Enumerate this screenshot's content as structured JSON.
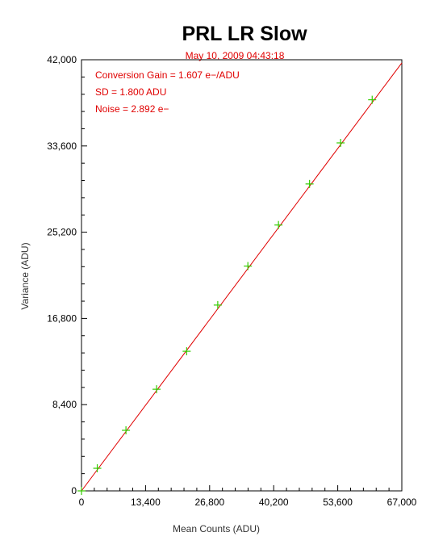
{
  "chart_data": {
    "type": "scatter",
    "title": "PRL LR Slow",
    "subtitle": "May 10, 2009  04:43:18",
    "xlabel": "Mean Counts (ADU)",
    "ylabel": "Variance (ADU)",
    "xlim": [
      0,
      67000
    ],
    "ylim": [
      0,
      42000
    ],
    "xticks": [
      "0",
      "13,400",
      "26,800",
      "40,200",
      "53,600",
      "67,000"
    ],
    "yticks": [
      "0",
      "8,400",
      "16,800",
      "25,200",
      "33,600",
      "42,000"
    ],
    "annotations": [
      "Conversion Gain = 1.607 e−/ADU",
      "SD = 1.800 ADU",
      "Noise = 2.892 e−"
    ],
    "points": {
      "x": [
        0,
        3300,
        9300,
        15700,
        22000,
        28500,
        34800,
        41200,
        47700,
        54200,
        60800
      ],
      "y": [
        0,
        2200,
        5900,
        9900,
        13600,
        18100,
        21900,
        25900,
        29900,
        33900,
        38100
      ]
    },
    "fit_line": {
      "slope": 0.6223,
      "intercept": 0
    },
    "colors": {
      "points": "#33cc00",
      "fit_line": "#e00000",
      "annotations": "#e00000"
    },
    "grid": false
  }
}
